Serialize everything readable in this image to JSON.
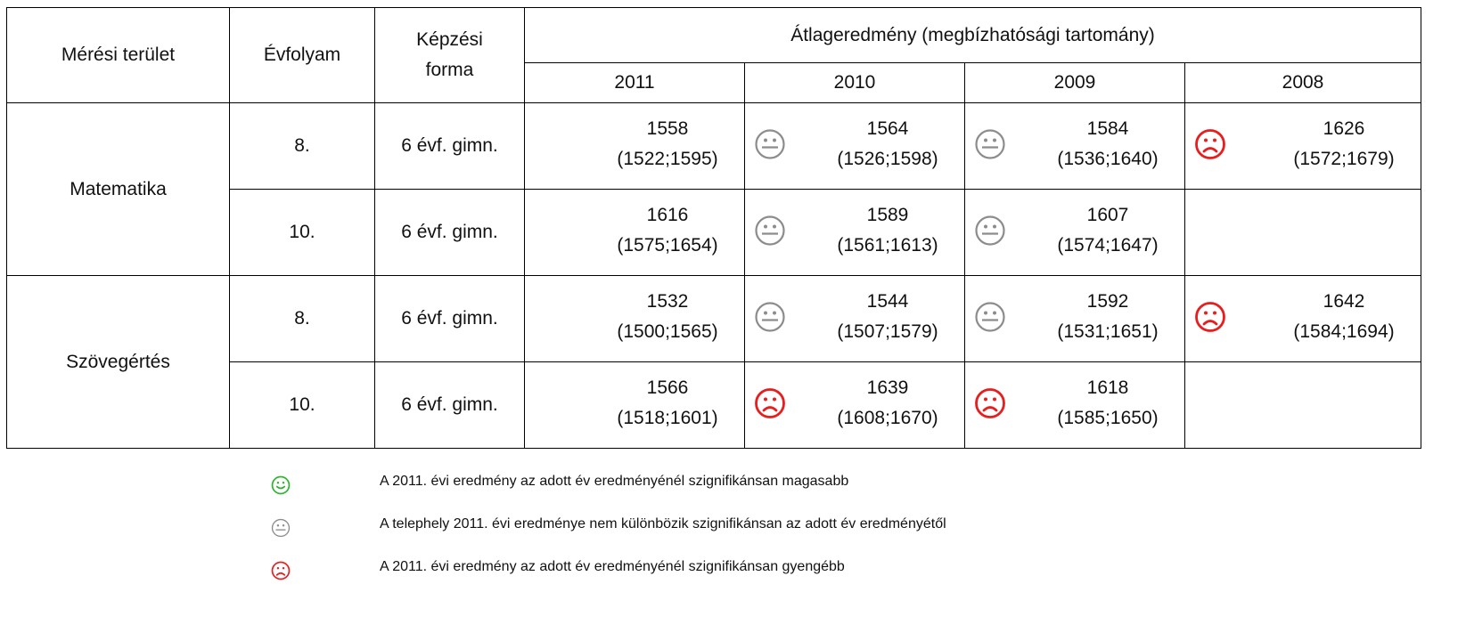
{
  "header": {
    "col_area": "Mérési terület",
    "col_grade": "Évfolyam",
    "col_form": "Képzési forma",
    "col_result": "Átlageredmény (megbízhatósági tartomány)",
    "years": [
      "2011",
      "2010",
      "2009",
      "2008"
    ]
  },
  "colors": {
    "green": "#2db52d",
    "gray": "#8c8c8c",
    "red": "#e81e1e"
  },
  "groups": [
    {
      "area": "Matematika",
      "rows": [
        {
          "grade": "8.",
          "form": "6 évf. gimn.",
          "cells": [
            {
              "value": "1558",
              "ci": "(1522;1595)",
              "icon": ""
            },
            {
              "value": "1564",
              "ci": "(1526;1598)",
              "icon": "neutral"
            },
            {
              "value": "1584",
              "ci": "(1536;1640)",
              "icon": "neutral"
            },
            {
              "value": "1626",
              "ci": "(1572;1679)",
              "icon": "sad"
            }
          ]
        },
        {
          "grade": "10.",
          "form": "6 évf. gimn.",
          "cells": [
            {
              "value": "1616",
              "ci": "(1575;1654)",
              "icon": ""
            },
            {
              "value": "1589",
              "ci": "(1561;1613)",
              "icon": "neutral"
            },
            {
              "value": "1607",
              "ci": "(1574;1647)",
              "icon": "neutral"
            },
            {
              "value": "",
              "ci": "",
              "icon": ""
            }
          ]
        }
      ]
    },
    {
      "area": "Szövegértés",
      "rows": [
        {
          "grade": "8.",
          "form": "6 évf. gimn.",
          "cells": [
            {
              "value": "1532",
              "ci": "(1500;1565)",
              "icon": ""
            },
            {
              "value": "1544",
              "ci": "(1507;1579)",
              "icon": "neutral"
            },
            {
              "value": "1592",
              "ci": "(1531;1651)",
              "icon": "neutral"
            },
            {
              "value": "1642",
              "ci": "(1584;1694)",
              "icon": "sad"
            }
          ]
        },
        {
          "grade": "10.",
          "form": "6 évf. gimn.",
          "cells": [
            {
              "value": "1566",
              "ci": "(1518;1601)",
              "icon": ""
            },
            {
              "value": "1639",
              "ci": "(1608;1670)",
              "icon": "sad"
            },
            {
              "value": "1618",
              "ci": "(1585;1650)",
              "icon": "sad"
            },
            {
              "value": "",
              "ci": "",
              "icon": ""
            }
          ]
        }
      ]
    }
  ],
  "legend": [
    {
      "icon": "happy",
      "text": "A 2011. évi eredmény az adott év eredményénél szignifikánsan magasabb"
    },
    {
      "icon": "neutral",
      "text": "A telephely 2011. évi eredménye nem különbözik szignifikánsan az adott év eredményétől"
    },
    {
      "icon": "sad",
      "text": "A 2011. évi eredmény az adott év eredményénél szignifikánsan gyengébb"
    }
  ]
}
